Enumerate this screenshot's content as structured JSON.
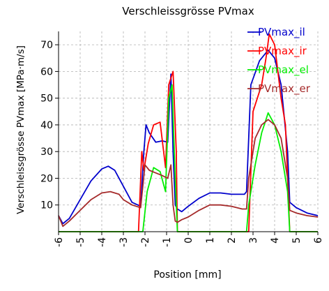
{
  "chart_data": {
    "type": "line",
    "title": "Verschleissgrösse PVmax",
    "xlabel": "Position [mm]",
    "ylabel": "Verschleissgrösse PVmax [MPa·m/s]",
    "xlim": [
      -6,
      6
    ],
    "ylim": [
      0,
      75
    ],
    "xticks": [
      -6,
      -5,
      -4,
      -3,
      -2,
      -1,
      0,
      1,
      2,
      3,
      4,
      5,
      6
    ],
    "yticks": [
      10,
      20,
      30,
      40,
      50,
      60,
      70
    ],
    "grid": true,
    "legend_position": "top-right",
    "series": [
      {
        "name": "PVmax_il",
        "color": "#0000cc",
        "x": [
          -6,
          -5.8,
          -5.5,
          -5,
          -4.5,
          -4,
          -3.7,
          -3.4,
          -3,
          -2.6,
          -2.2,
          -2.05,
          -1.95,
          -1.8,
          -1.5,
          -1.2,
          -0.95,
          -0.8,
          -0.7,
          -0.6,
          -0.5,
          -0.3,
          0,
          0.5,
          1,
          1.5,
          2,
          2.3,
          2.6,
          2.7,
          2.9,
          3.3,
          3.7,
          4,
          4.3,
          4.6,
          4.7,
          5,
          5.5,
          6
        ],
        "y": [
          6,
          3,
          5,
          12,
          19,
          23.5,
          24.5,
          23,
          17,
          11,
          9.5,
          30,
          40,
          37,
          33.5,
          34,
          33.5,
          59,
          30,
          10,
          8.5,
          7.5,
          9.5,
          12.5,
          14.5,
          14.5,
          14,
          14,
          14,
          15,
          55,
          64,
          68,
          65,
          55,
          30,
          11,
          9,
          7,
          6
        ]
      },
      {
        "name": "PVmax_ir",
        "color": "#ff0000",
        "x": [
          -6,
          -5.8,
          -5.5,
          -5,
          -4.5,
          -4,
          -3.6,
          -3.2,
          -3,
          -2.3,
          -2.15,
          -2.05,
          -1.85,
          -1.6,
          -1.3,
          -1.05,
          -0.9,
          -0.7,
          -0.55,
          -0.5,
          -0.3,
          0,
          0.5,
          1,
          1.5,
          2,
          2.5,
          2.7,
          2.8,
          3.0,
          3.4,
          3.6,
          3.75,
          4,
          4.3,
          4.5,
          4.7,
          5,
          5.5,
          6
        ],
        "y": [
          0,
          0,
          0,
          0,
          0,
          0,
          0,
          0,
          0,
          0,
          30,
          23,
          33,
          40,
          41,
          24,
          55,
          60,
          30,
          0,
          0,
          0,
          0,
          0,
          0,
          0,
          0,
          0,
          0,
          45,
          55,
          65,
          74,
          70,
          50,
          40,
          0,
          0,
          0,
          0
        ]
      },
      {
        "name": "PVmax_el",
        "color": "#00ee00",
        "x": [
          -6,
          -5.8,
          -5,
          -4,
          -3,
          -2.1,
          -1.9,
          -1.6,
          -1.3,
          -1.05,
          -0.9,
          -0.75,
          -0.6,
          -0.5,
          0,
          1,
          2,
          2.7,
          2.8,
          3.1,
          3.4,
          3.7,
          4,
          4.3,
          4.6,
          4.7,
          5,
          6
        ],
        "y": [
          0,
          0,
          0,
          0,
          0,
          0,
          15,
          24,
          22.5,
          15,
          50,
          55,
          20,
          0,
          0,
          0,
          0,
          0,
          10,
          25,
          37,
          44.5,
          40,
          30,
          15,
          0,
          0,
          0
        ]
      },
      {
        "name": "PVmax_er",
        "color": "#a52a2a",
        "x": [
          -6,
          -5.8,
          -5.5,
          -5,
          -4.5,
          -4,
          -3.6,
          -3.2,
          -3,
          -2.6,
          -2.2,
          -2.0,
          -1.8,
          -1.5,
          -1.2,
          -0.95,
          -0.8,
          -0.7,
          -0.6,
          -0.5,
          -0.3,
          0,
          0.5,
          1,
          1.5,
          2,
          2.5,
          2.7,
          2.8,
          3.1,
          3.4,
          3.7,
          4,
          4.3,
          4.6,
          4.7,
          5,
          5.5,
          6
        ],
        "y": [
          6,
          2,
          4,
          8,
          12,
          14.5,
          15,
          14,
          12,
          10,
          9,
          25,
          23,
          22,
          21,
          20,
          25,
          10,
          4,
          3.5,
          4.5,
          5.5,
          8,
          10,
          10,
          9.5,
          8.5,
          8.5,
          20,
          35,
          40,
          42,
          40,
          35,
          20,
          8,
          7,
          6,
          5.5
        ]
      }
    ]
  }
}
